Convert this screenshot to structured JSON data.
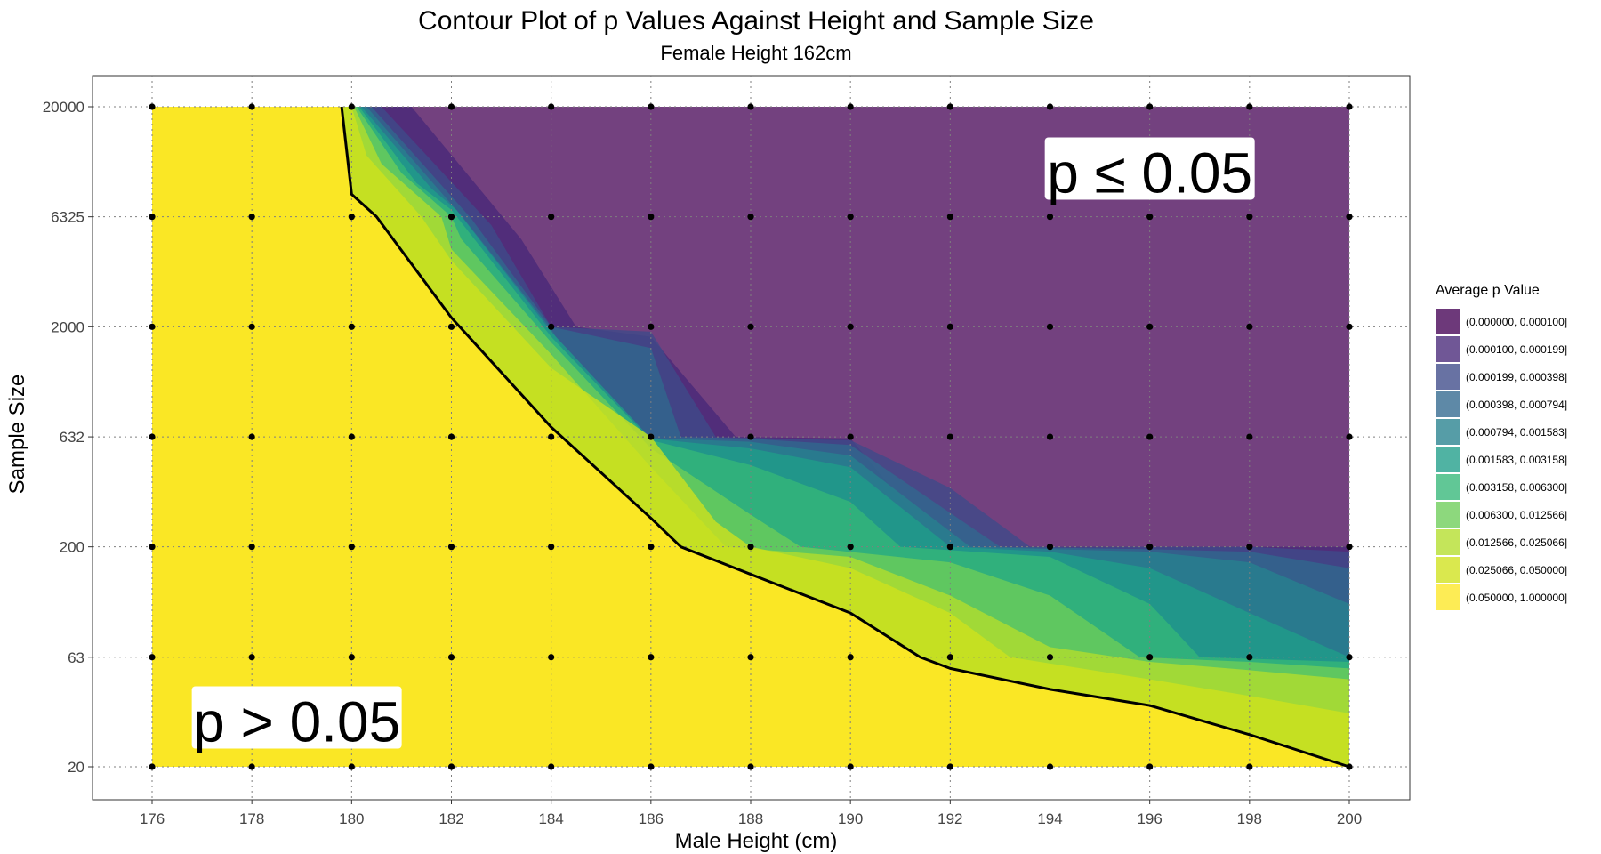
{
  "chart_data": {
    "type": "contour",
    "title": "Contour Plot of p Values Against Height and Sample Size",
    "subtitle": "Female Height 162cm",
    "xlabel": "Male Height (cm)",
    "ylabel": "Sample Size",
    "x_ticks": [
      "176",
      "178",
      "180",
      "182",
      "184",
      "186",
      "188",
      "190",
      "192",
      "194",
      "196",
      "198",
      "200"
    ],
    "y_ticks": [
      "20",
      "63",
      "200",
      "632",
      "2000",
      "6325",
      "20000"
    ],
    "xlim": [
      176,
      200
    ],
    "ylim": [
      20,
      20000
    ],
    "y_scale": "log",
    "grid": "dotted",
    "grid_points": {
      "x": [
        176,
        178,
        180,
        182,
        184,
        186,
        188,
        190,
        192,
        194,
        196,
        198,
        200
      ],
      "y": [
        20,
        63,
        200,
        632,
        2000,
        6325,
        20000
      ]
    },
    "legend": {
      "title": "Average p Value",
      "position": "right",
      "entries": [
        {
          "label": "(0.000000, 0.000100]",
          "color": "#440154"
        },
        {
          "label": "(0.000100, 0.000199]",
          "color": "#482878"
        },
        {
          "label": "(0.000199, 0.000398]",
          "color": "#3E4A89"
        },
        {
          "label": "(0.000398, 0.000794]",
          "color": "#31688E"
        },
        {
          "label": "(0.000794, 0.001583]",
          "color": "#26828E"
        },
        {
          "label": "(0.001583, 0.003158]",
          "color": "#1F9E89"
        },
        {
          "label": "(0.003158, 0.006300]",
          "color": "#35B779"
        },
        {
          "label": "(0.006300, 0.012566]",
          "color": "#6DCD59"
        },
        {
          "label": "(0.012566, 0.025066]",
          "color": "#B4DE2C"
        },
        {
          "label": "(0.025066, 0.050000]",
          "color": "#CFE11C"
        },
        {
          "label": "(0.050000, 1.000000]",
          "color": "#FDE725"
        }
      ]
    },
    "boundaries": [
      {
        "p": 0.05,
        "points": [
          [
            179.8,
            20000
          ],
          [
            180.0,
            8000
          ],
          [
            180.5,
            6325
          ],
          [
            182,
            2200
          ],
          [
            184,
            700
          ],
          [
            186,
            270
          ],
          [
            186.6,
            200
          ],
          [
            188,
            150
          ],
          [
            190,
            100
          ],
          [
            191.4,
            63
          ],
          [
            192,
            56
          ],
          [
            194,
            45
          ],
          [
            196,
            38
          ],
          [
            198,
            28
          ],
          [
            200,
            20
          ]
        ]
      },
      {
        "p": 0.025,
        "points": [
          [
            180.0,
            20000
          ],
          [
            180.3,
            12000
          ],
          [
            181.4,
            6325
          ],
          [
            182,
            4000
          ],
          [
            184,
            1300
          ],
          [
            186,
            632
          ],
          [
            187.3,
            260
          ],
          [
            188,
            200
          ],
          [
            190,
            160
          ],
          [
            192,
            100
          ],
          [
            193.2,
            63
          ],
          [
            196,
            50
          ],
          [
            198,
            42
          ],
          [
            200,
            35
          ]
        ]
      },
      {
        "p": 0.0126,
        "points": [
          [
            180.05,
            20000
          ],
          [
            180.6,
            11000
          ],
          [
            181.8,
            6325
          ],
          [
            182,
            4500
          ],
          [
            184,
            1500
          ],
          [
            186,
            460
          ],
          [
            187.5,
            200
          ],
          [
            190,
            180
          ],
          [
            192,
            120
          ],
          [
            194,
            70
          ],
          [
            196,
            60
          ],
          [
            198,
            55
          ],
          [
            200,
            50
          ]
        ]
      },
      {
        "p": 0.0063,
        "points": [
          [
            180.1,
            20000
          ],
          [
            181.0,
            10000
          ],
          [
            182,
            6325
          ],
          [
            182.2,
            5000
          ],
          [
            184,
            1700
          ],
          [
            186,
            560
          ],
          [
            188,
            280
          ],
          [
            189,
            200
          ],
          [
            192,
            170
          ],
          [
            194,
            120
          ],
          [
            195.8,
            63
          ],
          [
            198,
            60
          ],
          [
            200,
            56
          ]
        ]
      },
      {
        "p": 0.00316,
        "points": [
          [
            180.15,
            20000
          ],
          [
            181.3,
            9000
          ],
          [
            182,
            6800
          ],
          [
            184,
            1800
          ],
          [
            186,
            610
          ],
          [
            188,
            470
          ],
          [
            190,
            320
          ],
          [
            191,
            200
          ],
          [
            194,
            180
          ],
          [
            196,
            110
          ],
          [
            197,
            63
          ],
          [
            200,
            60
          ]
        ]
      },
      {
        "p": 0.00158,
        "points": [
          [
            180.2,
            20000
          ],
          [
            181.6,
            8500
          ],
          [
            182.1,
            6800
          ],
          [
            184,
            1900
          ],
          [
            186,
            620
          ],
          [
            188,
            560
          ],
          [
            190,
            460
          ],
          [
            192,
            200
          ],
          [
            194,
            190
          ],
          [
            196,
            160
          ],
          [
            198,
            100
          ],
          [
            200,
            63
          ]
        ]
      },
      {
        "p": 0.00079,
        "points": [
          [
            180.3,
            20000
          ],
          [
            182.2,
            6400
          ],
          [
            184,
            1950
          ],
          [
            185.3,
            632
          ],
          [
            188,
            600
          ],
          [
            190,
            520
          ],
          [
            192.4,
            200
          ],
          [
            196,
            190
          ],
          [
            198,
            170
          ],
          [
            200,
            110
          ]
        ]
      },
      {
        "p": 0.0004,
        "points": [
          [
            180.4,
            20000
          ],
          [
            182.4,
            6200
          ],
          [
            184,
            2000
          ],
          [
            186,
            1600
          ],
          [
            186.6,
            632
          ],
          [
            188,
            620
          ],
          [
            190,
            580
          ],
          [
            193,
            200
          ],
          [
            196,
            195
          ],
          [
            198,
            190
          ],
          [
            200,
            160
          ]
        ]
      },
      {
        "p": 0.0002,
        "points": [
          [
            180.6,
            20000
          ],
          [
            182.8,
            5800
          ],
          [
            184,
            2000
          ],
          [
            186,
            1900
          ],
          [
            187.3,
            632
          ],
          [
            190,
            610
          ],
          [
            192,
            370
          ],
          [
            193.6,
            200
          ],
          [
            198,
            200
          ],
          [
            200,
            190
          ]
        ]
      },
      {
        "p": 0.0001,
        "points": [
          [
            181.2,
            20000
          ],
          [
            183.4,
            5000
          ],
          [
            184.5,
            2000
          ],
          [
            186,
            1800
          ],
          [
            187.7,
            632
          ],
          [
            190,
            622
          ],
          [
            191.8,
            200
          ],
          [
            194.2,
            200
          ],
          [
            200,
            200
          ]
        ]
      }
    ],
    "significance_line": [
      [
        179.8,
        20000
      ],
      [
        180.0,
        8000
      ],
      [
        180.5,
        6325
      ],
      [
        182,
        2200
      ],
      [
        184,
        700
      ],
      [
        186,
        270
      ],
      [
        186.6,
        200
      ],
      [
        188,
        150
      ],
      [
        190,
        100
      ],
      [
        191.4,
        63
      ],
      [
        192,
        56
      ],
      [
        194,
        45
      ],
      [
        196,
        38
      ],
      [
        198,
        28
      ],
      [
        200,
        20
      ]
    ],
    "annotations": [
      {
        "text": "p ≤ 0.05",
        "x": 196,
        "y": 10000
      },
      {
        "text": "p > 0.05",
        "x": 178.9,
        "y": 32
      }
    ]
  }
}
